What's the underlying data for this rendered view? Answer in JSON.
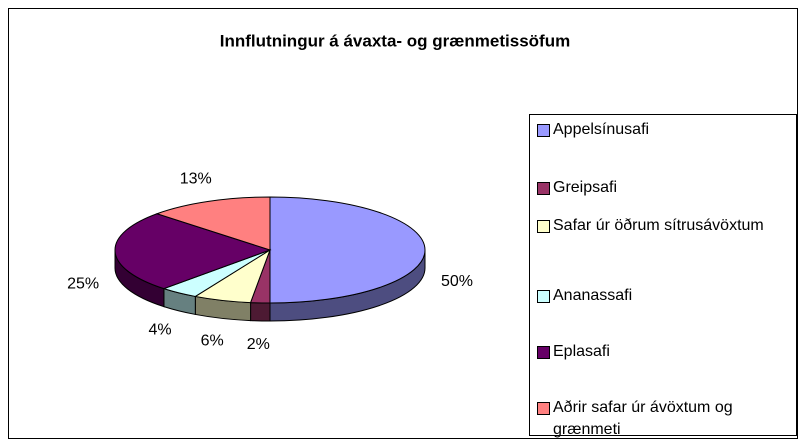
{
  "chart_data": {
    "type": "pie",
    "title": "Innflutningur á ávaxta- og grænmetissöfum",
    "categories": [
      "Appelsínusafi",
      "Greipsafi",
      "Safar úr öðrum sítrusávöxtum",
      "Ananassafi",
      "Eplasafi",
      "Aðrir safar úr ávöxtum og grænmeti"
    ],
    "values": [
      50,
      2,
      6,
      4,
      25,
      13
    ],
    "value_labels": [
      "50%",
      "2%",
      "6%",
      "4%",
      "25%",
      "13%"
    ],
    "colors": [
      "#9999ff",
      "#993366",
      "#ffffcc",
      "#ccffff",
      "#660066",
      "#ff8080"
    ],
    "legend": "right"
  }
}
